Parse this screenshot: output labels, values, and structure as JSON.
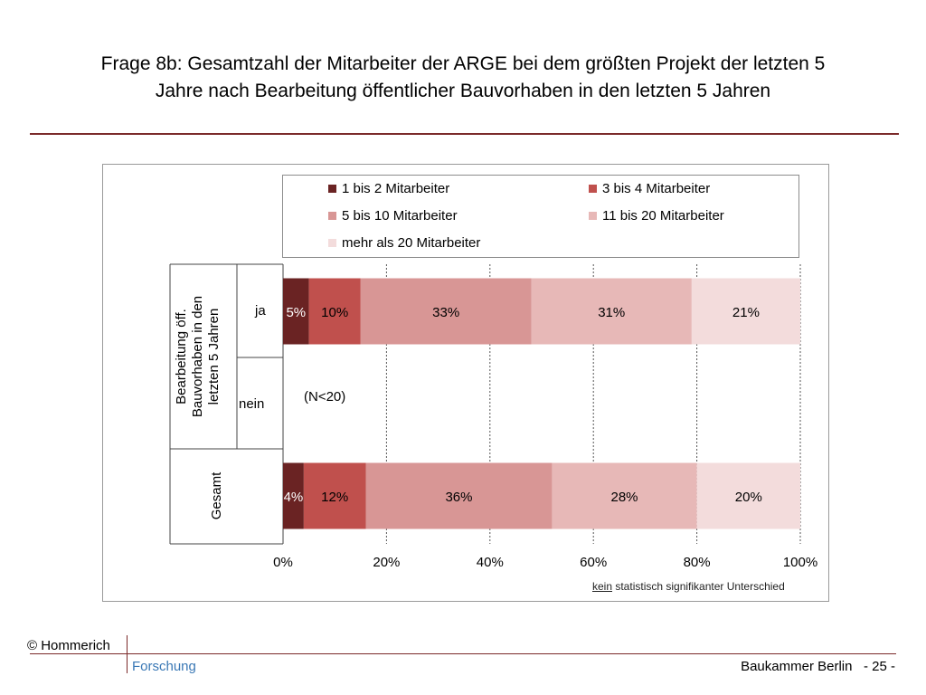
{
  "title": {
    "line1": "Frage 8b: Gesamtzahl der Mitarbeiter der ARGE bei dem größten Projekt der letzten 5",
    "line2": "Jahre nach Bearbeitung öffentlicher Bauvorhaben in den letzten 5 Jahren"
  },
  "chart_data": {
    "type": "bar",
    "orientation": "horizontal",
    "stacked": "percent",
    "categories": [
      "ja",
      "nein",
      "Gesamt"
    ],
    "group_label_lines": [
      "Bearbeitung öff.",
      "Bauvorhaben in den",
      "letzten 5 Jahren"
    ],
    "total_label": "Gesamt",
    "no_data_label": "(N<20)",
    "series": [
      {
        "name": "1 bis 2 Mitarbeiter",
        "color": "#6a2323",
        "values": [
          5,
          null,
          4
        ],
        "labels": [
          "5%",
          "",
          "4%"
        ]
      },
      {
        "name": "3 bis 4 Mitarbeiter",
        "color": "#c0504d",
        "values": [
          10,
          null,
          12
        ],
        "labels": [
          "10%",
          "",
          "12%"
        ]
      },
      {
        "name": "5 bis 10 Mitarbeiter",
        "color": "#d89695",
        "values": [
          33,
          null,
          36
        ],
        "labels": [
          "33%",
          "",
          "36%"
        ]
      },
      {
        "name": "11 bis 20 Mitarbeiter",
        "color": "#e7b8b7",
        "values": [
          31,
          null,
          28
        ],
        "labels": [
          "31%",
          "",
          "28%"
        ]
      },
      {
        "name": "mehr als 20 Mitarbeiter",
        "color": "#f3dcdc",
        "values": [
          21,
          null,
          20
        ],
        "labels": [
          "21%",
          "",
          "20%"
        ]
      }
    ],
    "xlim": [
      0,
      100
    ],
    "xticks": [
      "0%",
      "20%",
      "40%",
      "60%",
      "80%",
      "100%"
    ],
    "grid": true,
    "legend_position": "top"
  },
  "note": {
    "underlined": "kein",
    "rest": " statistisch signifikanter Unterschied"
  },
  "footer": {
    "copyright": "© Hommerich",
    "forschung": "Forschung",
    "org": "Baukammer Berlin",
    "page": "- 25 -"
  }
}
